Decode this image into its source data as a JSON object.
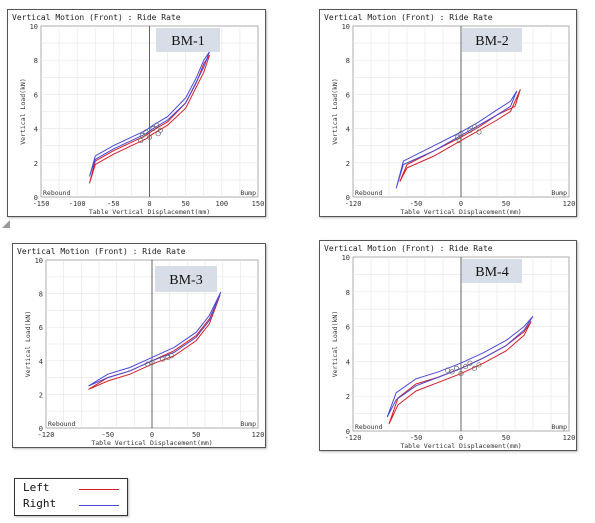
{
  "legend": [
    {
      "label": "Left",
      "color": "#d41f2a"
    },
    {
      "label": "Right",
      "color": "#4a4ad8"
    }
  ],
  "chart_data": [
    {
      "id": "bm-1",
      "type": "line",
      "title": "Vertical Motion (Front) : Ride Rate",
      "tag": "BM-1",
      "xlabel": "Table Vertical Displacement(mm)",
      "ylabel": "Vertical Load(kN)",
      "xlim": [
        -150,
        150
      ],
      "ylim": [
        0,
        10
      ],
      "xticks": [
        "-150",
        "-100",
        "-50",
        "0",
        "50",
        "100",
        "150"
      ],
      "xtick_values": [
        -150,
        -100,
        -50,
        0,
        50,
        100,
        150
      ],
      "yticks": [
        "0",
        "2",
        "4",
        "6",
        "8",
        "10"
      ],
      "ytick_values": [
        0,
        2,
        4,
        6,
        8,
        10
      ],
      "left_label": "Rebound",
      "right_label": "Bump",
      "series": [
        {
          "name": "Left",
          "color": "#d41f2a",
          "x": [
            -83,
            -75,
            -50,
            -25,
            -5,
            5,
            25,
            50,
            65,
            75,
            83,
            75,
            50,
            25,
            5,
            -5,
            -25,
            -50,
            -75,
            -83
          ],
          "y": [
            0.8,
            2.1,
            2.7,
            3.2,
            3.6,
            3.9,
            4.4,
            5.5,
            6.7,
            7.8,
            8.3,
            7.3,
            5.2,
            4.2,
            3.7,
            3.4,
            3.0,
            2.5,
            1.9,
            0.8
          ]
        },
        {
          "name": "Right",
          "color": "#4a4ad8",
          "x": [
            -83,
            -75,
            -50,
            -25,
            -5,
            5,
            25,
            50,
            65,
            75,
            83,
            75,
            50,
            25,
            5,
            -5,
            -25,
            -50,
            -75,
            -83
          ],
          "y": [
            1.2,
            2.4,
            3.0,
            3.5,
            3.9,
            4.2,
            4.7,
            5.8,
            7.0,
            8.0,
            8.5,
            7.6,
            5.5,
            4.5,
            4.0,
            3.7,
            3.3,
            2.8,
            2.2,
            1.2
          ]
        }
      ],
      "markers": [
        [
          -10,
          3.6
        ],
        [
          -5,
          3.8
        ],
        [
          0,
          3.5
        ],
        [
          5,
          4.0
        ],
        [
          10,
          4.2
        ],
        [
          15,
          3.9
        ],
        [
          -12,
          3.3
        ],
        [
          12,
          3.7
        ]
      ]
    },
    {
      "id": "bm-2",
      "type": "line",
      "title": "Vertical Motion (Front) : Ride Rate",
      "tag": "BM-2",
      "xlabel": "Table Vertical Displacement(mm)",
      "ylabel": "Vertical Load(kN)",
      "xlim": [
        -120,
        120
      ],
      "ylim": [
        0,
        10
      ],
      "xticks": [
        "-120",
        "-50",
        "0",
        "50",
        "120"
      ],
      "xtick_values": [
        -120,
        -50,
        0,
        50,
        120
      ],
      "yticks": [
        "0",
        "2",
        "4",
        "6",
        "8",
        "10"
      ],
      "ytick_values": [
        0,
        2,
        4,
        6,
        8,
        10
      ],
      "left_label": "Rebound",
      "right_label": "Bump",
      "series": [
        {
          "name": "Left",
          "color": "#d41f2a",
          "x": [
            -68,
            -60,
            -30,
            0,
            20,
            40,
            55,
            66,
            60,
            40,
            20,
            0,
            -30,
            -60,
            -68
          ],
          "y": [
            0.9,
            1.7,
            2.4,
            3.3,
            3.9,
            4.5,
            5.0,
            6.3,
            5.3,
            4.8,
            4.1,
            3.5,
            2.7,
            1.9,
            0.9
          ]
        },
        {
          "name": "Right",
          "color": "#4a4ad8",
          "x": [
            -72,
            -64,
            -30,
            0,
            20,
            40,
            55,
            62,
            55,
            40,
            20,
            0,
            -30,
            -64,
            -72
          ],
          "y": [
            0.5,
            1.9,
            2.7,
            3.6,
            4.2,
            4.8,
            5.3,
            6.2,
            5.6,
            5.1,
            4.4,
            3.8,
            3.0,
            2.1,
            0.5
          ]
        }
      ],
      "markers": [
        [
          -4,
          3.5
        ],
        [
          0,
          3.7
        ],
        [
          10,
          3.9
        ],
        [
          15,
          4.1
        ],
        [
          20,
          3.8
        ],
        [
          -2,
          3.3
        ]
      ]
    },
    {
      "id": "bm-3",
      "type": "line",
      "title": "Vertical Motion (Front) : Ride Rate",
      "tag": "BM-3",
      "xlabel": "Table Vertical Displacement(mm)",
      "ylabel": "Vertical Load(kN)",
      "xlim": [
        -120,
        120
      ],
      "ylim": [
        0,
        10
      ],
      "xticks": [
        "-120",
        "-50",
        "0",
        "50",
        "120"
      ],
      "xtick_values": [
        -120,
        -50,
        0,
        50,
        120
      ],
      "yticks": [
        "0",
        "2",
        "4",
        "6",
        "8",
        "10"
      ],
      "ytick_values": [
        0,
        2,
        4,
        6,
        8,
        10
      ],
      "left_label": "Rebound",
      "right_label": "Bump",
      "series": [
        {
          "name": "Left",
          "color": "#d41f2a",
          "x": [
            -72,
            -50,
            -25,
            0,
            25,
            50,
            65,
            77,
            65,
            50,
            25,
            0,
            -25,
            -50,
            -72
          ],
          "y": [
            2.3,
            2.8,
            3.2,
            3.8,
            4.3,
            5.2,
            6.2,
            7.9,
            6.5,
            5.5,
            4.6,
            4.0,
            3.4,
            3.0,
            2.3
          ]
        },
        {
          "name": "Right",
          "color": "#4a4ad8",
          "x": [
            -72,
            -50,
            -25,
            0,
            25,
            50,
            65,
            78,
            65,
            50,
            25,
            0,
            -25,
            -50,
            -72
          ],
          "y": [
            2.5,
            3.0,
            3.4,
            4.0,
            4.5,
            5.4,
            6.4,
            8.1,
            6.7,
            5.7,
            4.8,
            4.2,
            3.6,
            3.2,
            2.5
          ]
        }
      ],
      "markers": [
        [
          -5,
          3.8
        ],
        [
          0,
          3.9
        ],
        [
          18,
          4.2
        ],
        [
          22,
          4.3
        ],
        [
          12,
          4.1
        ]
      ]
    },
    {
      "id": "bm-4",
      "type": "line",
      "title": "Vertical Motion (Front) : Ride Rate",
      "tag": "BM-4",
      "xlabel": "Table Vertical Displacement(mm)",
      "ylabel": "Vertical Load(kN)",
      "xlim": [
        -120,
        120
      ],
      "ylim": [
        0,
        10
      ],
      "xticks": [
        "-120",
        "-50",
        "0",
        "50",
        "120"
      ],
      "xtick_values": [
        -120,
        -50,
        0,
        50,
        120
      ],
      "yticks": [
        "0",
        "2",
        "4",
        "6",
        "8",
        "10"
      ],
      "ytick_values": [
        0,
        2,
        4,
        6,
        8,
        10
      ],
      "left_label": "Rebound",
      "right_label": "Bump",
      "series": [
        {
          "name": "Left",
          "color": "#d41f2a",
          "x": [
            -80,
            -70,
            -50,
            -25,
            0,
            25,
            50,
            70,
            78,
            70,
            50,
            25,
            0,
            -25,
            -50,
            -70,
            -80
          ],
          "y": [
            0.4,
            1.5,
            2.3,
            2.8,
            3.3,
            3.9,
            4.6,
            5.5,
            6.3,
            5.7,
            4.9,
            4.2,
            3.6,
            3.1,
            2.7,
            1.9,
            0.4
          ]
        },
        {
          "name": "Right",
          "color": "#4a4ad8",
          "x": [
            -82,
            -72,
            -50,
            -25,
            0,
            25,
            50,
            70,
            80,
            70,
            50,
            25,
            0,
            -25,
            -50,
            -72,
            -82
          ],
          "y": [
            0.8,
            1.8,
            2.6,
            3.1,
            3.6,
            4.2,
            4.9,
            5.8,
            6.6,
            6.0,
            5.2,
            4.5,
            3.9,
            3.4,
            3.0,
            2.2,
            0.8
          ]
        }
      ],
      "markers": [
        [
          -10,
          3.4
        ],
        [
          -5,
          3.6
        ],
        [
          0,
          3.3
        ],
        [
          5,
          3.7
        ],
        [
          10,
          3.9
        ],
        [
          15,
          3.6
        ],
        [
          -15,
          3.5
        ],
        [
          20,
          3.8
        ]
      ]
    }
  ]
}
